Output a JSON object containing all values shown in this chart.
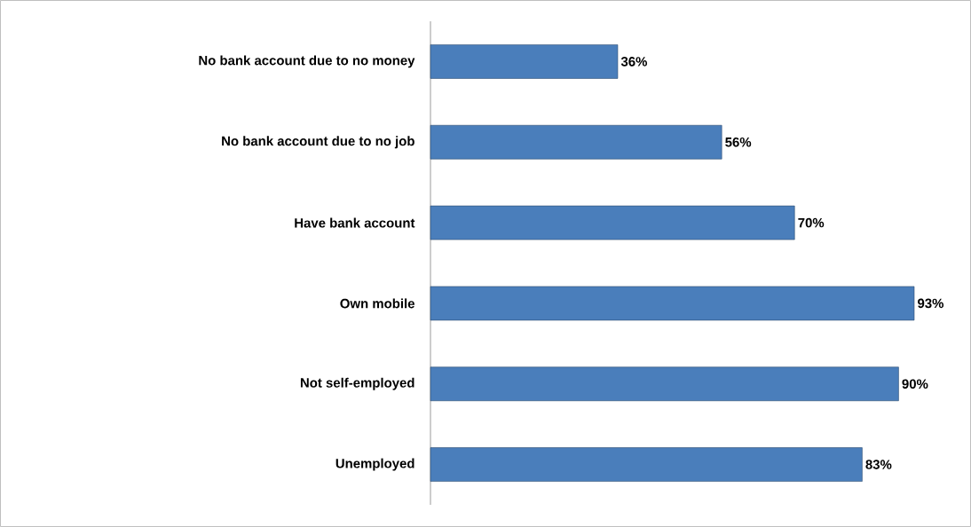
{
  "chart_data": {
    "type": "bar",
    "orientation": "horizontal",
    "categories": [
      "No bank account due to no money",
      "No bank account due to no job",
      "Have bank account",
      "Own mobile",
      "Not self-employed",
      "Unemployed"
    ],
    "values": [
      36,
      56,
      70,
      93,
      90,
      83
    ],
    "value_labels": [
      "36%",
      "56%",
      "70%",
      "93%",
      "90%",
      "83%"
    ],
    "color": "#4a7ebb",
    "tick_labels": "y"
  }
}
